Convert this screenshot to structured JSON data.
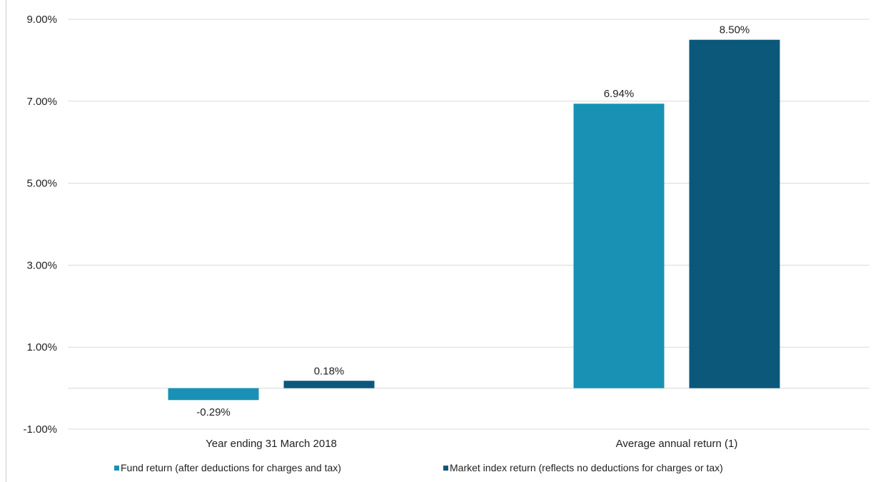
{
  "chart_data": {
    "type": "bar",
    "categories": [
      "Year ending 31 March 2018",
      "Average annual return (1)"
    ],
    "series": [
      {
        "name": "Fund return (after deductions for charges and tax)",
        "color": "#1891b4",
        "values": [
          -0.29,
          6.94
        ],
        "labels": [
          "-0.29%",
          "6.94%"
        ]
      },
      {
        "name": "Market index return (reflects no deductions for charges or tax)",
        "color": "#0b587b",
        "values": [
          0.18,
          8.5
        ],
        "labels": [
          "0.18%",
          "8.50%"
        ]
      }
    ],
    "yticks": [
      {
        "value": 9.0,
        "label": "9.00%"
      },
      {
        "value": 7.0,
        "label": "7.00%"
      },
      {
        "value": 5.0,
        "label": "5.00%"
      },
      {
        "value": 3.0,
        "label": "3.00%"
      },
      {
        "value": 1.0,
        "label": "1.00%"
      },
      {
        "value": -1.0,
        "label": "-1.00%"
      }
    ],
    "ylim": [
      -1.0,
      9.0
    ],
    "grid": true,
    "legend_position": "bottom",
    "axis_color": "#d9d9d9"
  }
}
